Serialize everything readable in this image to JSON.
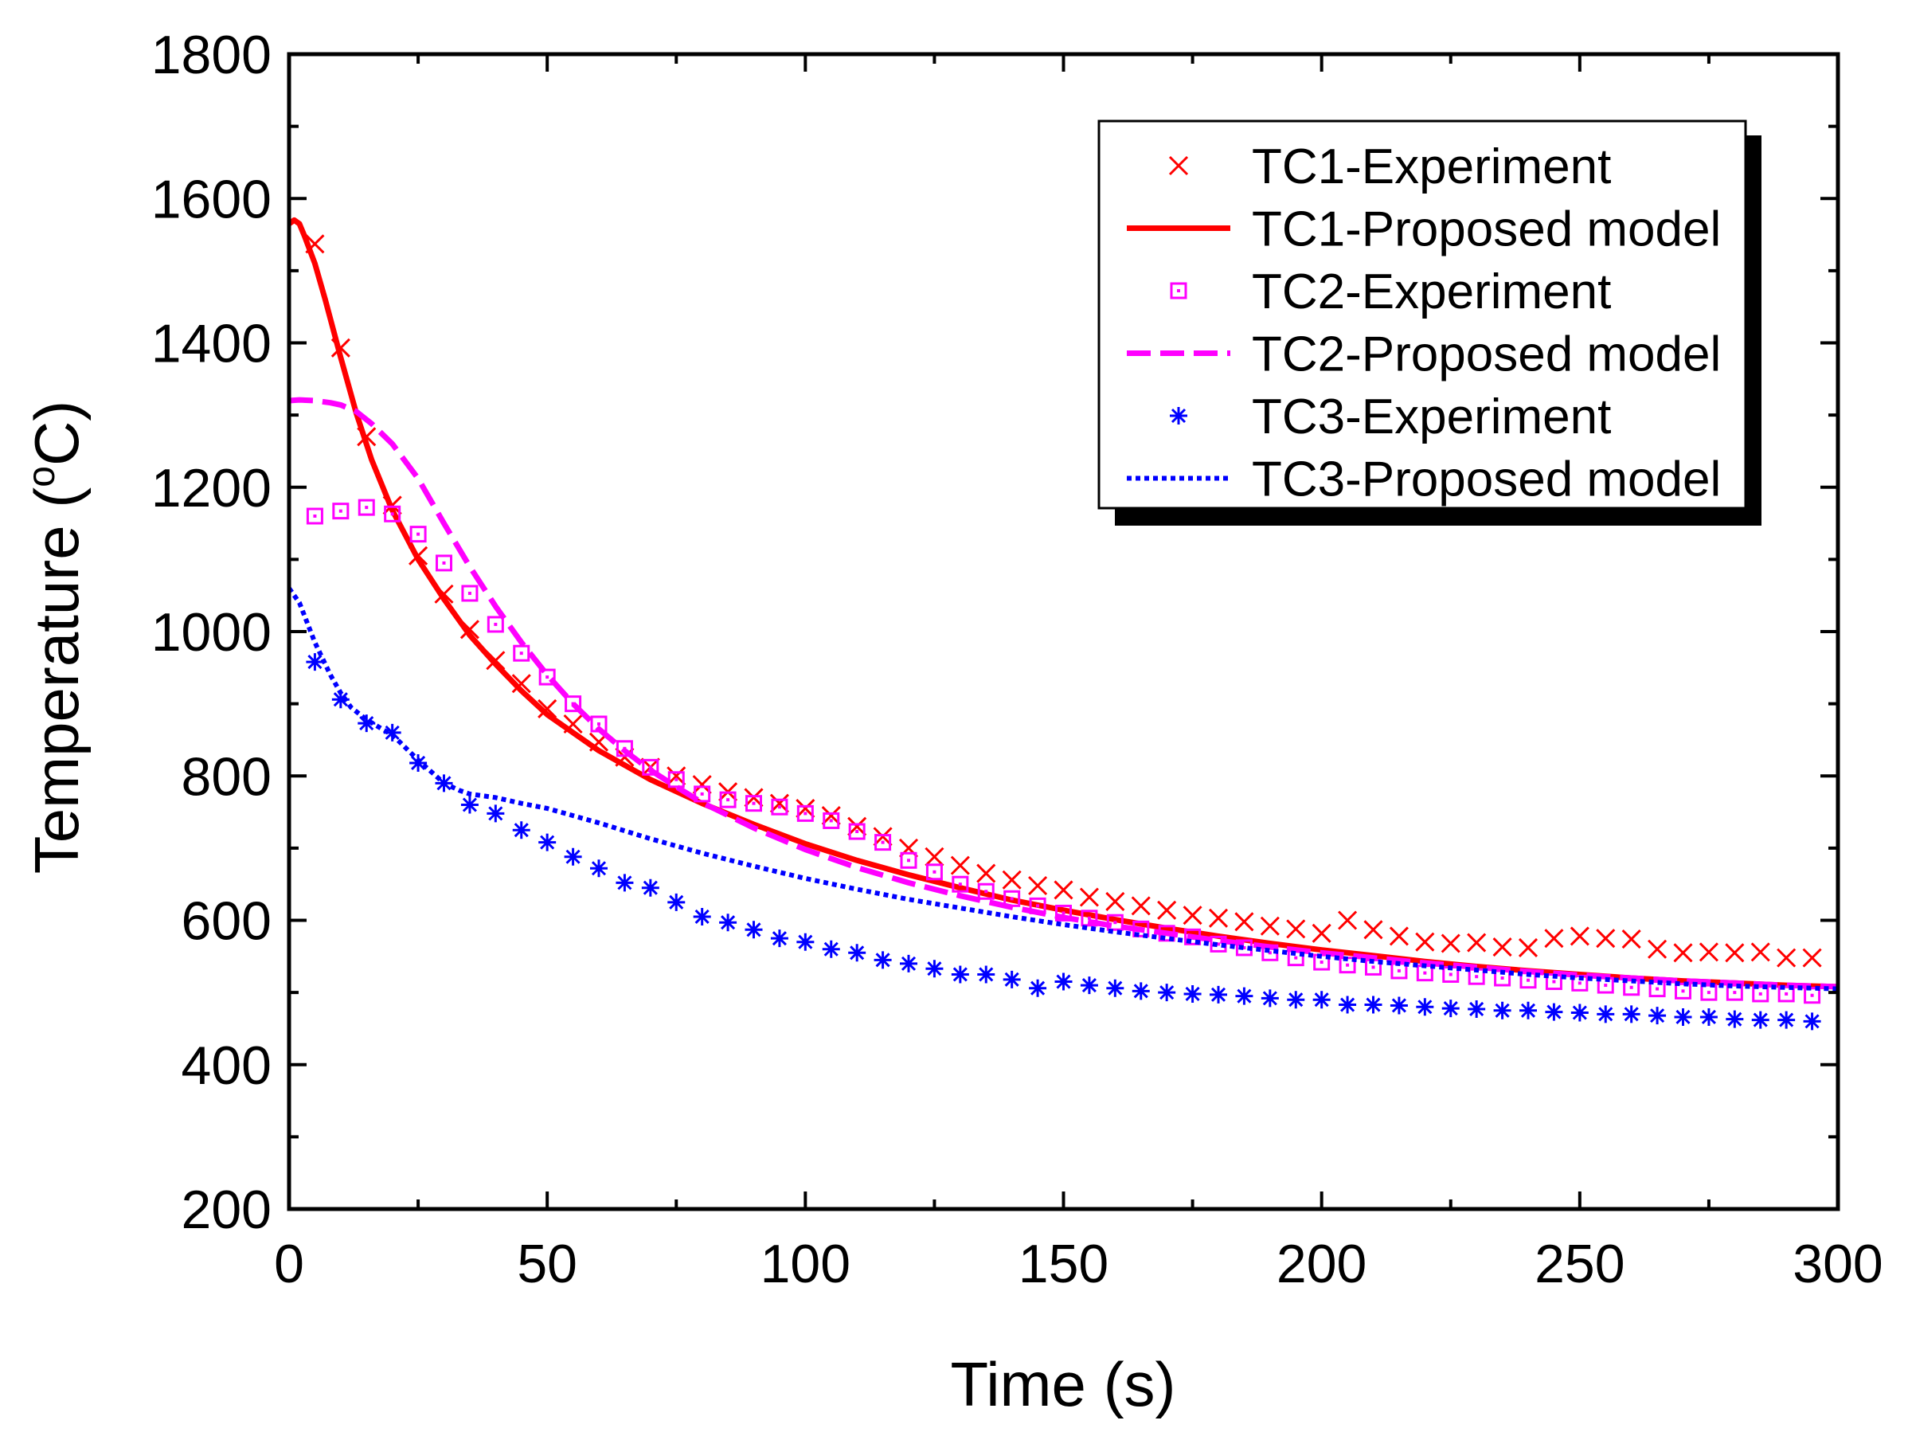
{
  "chart_data": {
    "type": "line",
    "title": "",
    "xlabel": "Time (s)",
    "ylabel_main": "Temperature (",
    "ylabel_sup": "o",
    "ylabel_end": "C)",
    "xlim": [
      0,
      300
    ],
    "ylim": [
      200,
      1800
    ],
    "xticks": [
      0,
      50,
      100,
      150,
      200,
      250,
      300
    ],
    "yticks": [
      200,
      400,
      600,
      800,
      1000,
      1200,
      1400,
      1600,
      1800
    ],
    "grid": false,
    "legend_position": "top-right",
    "series": [
      {
        "name": "TC1-Experiment",
        "kind": "marker",
        "marker": "x",
        "color": "#ff0000",
        "x": [
          5,
          10,
          15,
          20,
          25,
          30,
          35,
          40,
          45,
          50,
          55,
          60,
          65,
          70,
          75,
          80,
          85,
          90,
          95,
          100,
          105,
          110,
          115,
          120,
          125,
          130,
          135,
          140,
          145,
          150,
          155,
          160,
          165,
          170,
          175,
          180,
          185,
          190,
          195,
          200,
          205,
          210,
          215,
          220,
          225,
          230,
          235,
          240,
          245,
          250,
          255,
          260,
          265,
          270,
          275,
          280,
          285,
          290,
          295
        ],
        "y": [
          1537,
          1393,
          1270,
          1175,
          1105,
          1052,
          1003,
          960,
          928,
          893,
          872,
          847,
          826,
          812,
          800,
          788,
          778,
          770,
          762,
          755,
          745,
          730,
          716,
          700,
          688,
          676,
          665,
          656,
          648,
          642,
          632,
          626,
          620,
          614,
          607,
          603,
          598,
          592,
          588,
          582,
          600,
          587,
          578,
          570,
          568,
          569,
          563,
          562,
          575,
          578,
          575,
          574,
          560,
          555,
          556,
          555,
          556,
          548,
          548
        ]
      },
      {
        "name": "TC1-Proposed model",
        "kind": "line",
        "style": "solid",
        "color": "#ff0000",
        "x": [
          0,
          1,
          2,
          3,
          5,
          7,
          10,
          13,
          16,
          20,
          25,
          30,
          35,
          40,
          45,
          50,
          60,
          70,
          80,
          90,
          100,
          110,
          120,
          130,
          140,
          150,
          160,
          170,
          180,
          190,
          200,
          210,
          220,
          230,
          240,
          250,
          260,
          270,
          280,
          290,
          300
        ],
        "y": [
          1565,
          1570,
          1565,
          1548,
          1510,
          1460,
          1380,
          1303,
          1238,
          1168,
          1100,
          1045,
          995,
          955,
          918,
          885,
          835,
          795,
          762,
          733,
          706,
          683,
          663,
          645,
          628,
          614,
          601,
          589,
          578,
          568,
          559,
          551,
          543,
          536,
          530,
          525,
          520,
          516,
          513,
          510,
          508
        ]
      },
      {
        "name": "TC2-Experiment",
        "kind": "marker",
        "marker": "square-dot",
        "color": "#ff00ff",
        "x": [
          5,
          10,
          15,
          20,
          25,
          30,
          35,
          40,
          45,
          50,
          55,
          60,
          65,
          70,
          75,
          80,
          85,
          90,
          95,
          100,
          105,
          110,
          115,
          120,
          125,
          130,
          135,
          140,
          145,
          150,
          155,
          160,
          165,
          170,
          175,
          180,
          185,
          190,
          195,
          200,
          205,
          210,
          215,
          220,
          225,
          230,
          235,
          240,
          245,
          250,
          255,
          260,
          265,
          270,
          275,
          280,
          285,
          290,
          295
        ],
        "y": [
          1160,
          1167,
          1172,
          1163,
          1135,
          1095,
          1053,
          1010,
          970,
          937,
          900,
          872,
          838,
          812,
          795,
          775,
          767,
          762,
          757,
          748,
          738,
          723,
          708,
          683,
          667,
          650,
          640,
          630,
          620,
          610,
          603,
          597,
          588,
          582,
          577,
          567,
          562,
          555,
          548,
          542,
          538,
          535,
          530,
          527,
          525,
          522,
          520,
          517,
          515,
          513,
          510,
          507,
          505,
          502,
          500,
          500,
          498,
          498,
          496
        ]
      },
      {
        "name": "TC2-Proposed model",
        "kind": "line",
        "style": "dashed",
        "color": "#ff00ff",
        "x": [
          0,
          2,
          5,
          8,
          10,
          13,
          16,
          20,
          25,
          30,
          35,
          40,
          45,
          50,
          55,
          60,
          65,
          70,
          75,
          80,
          90,
          100,
          110,
          120,
          130,
          140,
          150,
          160,
          170,
          180,
          190,
          200,
          210,
          220,
          230,
          240,
          250,
          260,
          270,
          280,
          290,
          300
        ],
        "y": [
          1320,
          1321,
          1320,
          1317,
          1314,
          1305,
          1288,
          1260,
          1212,
          1150,
          1090,
          1035,
          985,
          940,
          900,
          865,
          835,
          808,
          785,
          763,
          728,
          698,
          673,
          652,
          634,
          618,
          604,
          592,
          582,
          572,
          563,
          555,
          548,
          541,
          535,
          529,
          524,
          520,
          516,
          513,
          510,
          508
        ]
      },
      {
        "name": "TC3-Experiment",
        "kind": "marker",
        "marker": "asterisk",
        "color": "#0000ff",
        "x": [
          5,
          10,
          15,
          20,
          25,
          30,
          35,
          40,
          45,
          50,
          55,
          60,
          65,
          70,
          75,
          80,
          85,
          90,
          95,
          100,
          105,
          110,
          115,
          120,
          125,
          130,
          135,
          140,
          145,
          150,
          155,
          160,
          165,
          170,
          175,
          180,
          185,
          190,
          195,
          200,
          205,
          210,
          215,
          220,
          225,
          230,
          235,
          240,
          245,
          250,
          255,
          260,
          265,
          270,
          275,
          280,
          285,
          290,
          295
        ],
        "y": [
          958,
          906,
          873,
          860,
          818,
          790,
          760,
          748,
          725,
          708,
          688,
          672,
          652,
          645,
          625,
          605,
          597,
          587,
          575,
          570,
          560,
          555,
          545,
          540,
          533,
          525,
          525,
          518,
          506,
          515,
          510,
          506,
          502,
          500,
          498,
          497,
          495,
          492,
          490,
          490,
          483,
          483,
          482,
          480,
          478,
          477,
          475,
          475,
          473,
          472,
          470,
          470,
          468,
          466,
          466,
          463,
          462,
          462,
          460
        ]
      },
      {
        "name": "TC3-Proposed model",
        "kind": "line",
        "style": "dotted",
        "color": "#0000ff",
        "x": [
          0,
          2,
          5,
          8,
          10,
          12,
          15,
          18,
          20,
          25,
          30,
          33,
          35,
          40,
          45,
          50,
          60,
          70,
          80,
          90,
          100,
          110,
          120,
          130,
          140,
          150,
          160,
          170,
          180,
          190,
          200,
          210,
          220,
          230,
          240,
          250,
          260,
          270,
          280,
          290,
          300
        ],
        "y": [
          1060,
          1040,
          985,
          940,
          915,
          895,
          878,
          865,
          857,
          822,
          790,
          780,
          775,
          770,
          762,
          755,
          735,
          713,
          693,
          675,
          658,
          643,
          629,
          617,
          605,
          594,
          584,
          575,
          566,
          558,
          550,
          543,
          537,
          531,
          525,
          520,
          516,
          512,
          509,
          507,
          505
        ]
      }
    ]
  }
}
